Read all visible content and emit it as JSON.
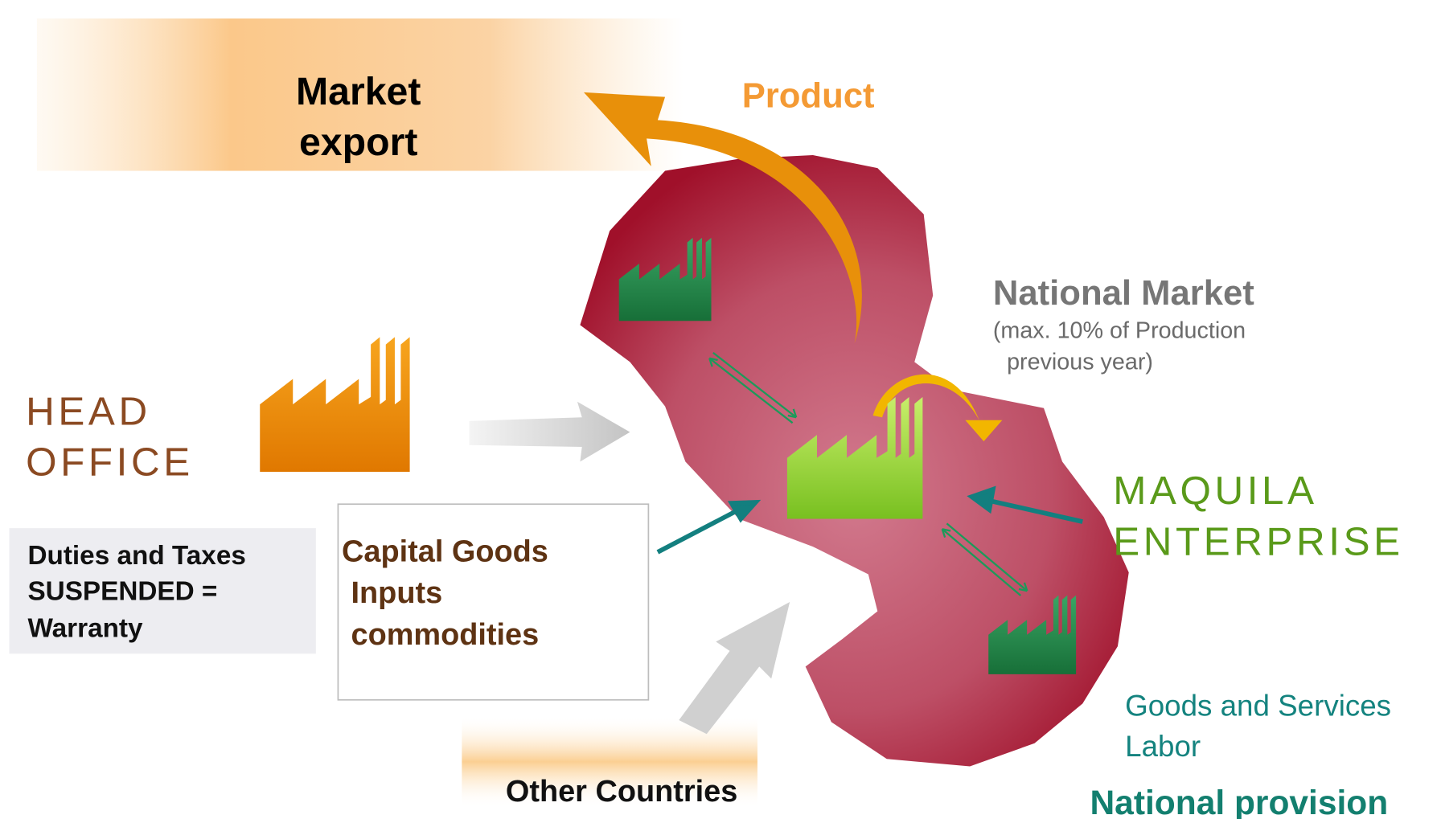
{
  "market_export": [
    "Market",
    "export"
  ],
  "product": "Product",
  "national_market": {
    "title": "National Market",
    "note": [
      "(max. 10% of Production",
      "previous year)"
    ]
  },
  "head_office": [
    "HEAD",
    "OFFICE"
  ],
  "maquila_enterprise": [
    "MAQUILA",
    "ENTERPRISE"
  ],
  "duties_box": [
    "Duties and Taxes",
    "SUSPENDED =",
    "Warranty"
  ],
  "capital_goods_box": [
    "Capital Goods",
    "Inputs",
    "commodities"
  ],
  "other_countries": "Other Countries",
  "national_provision": {
    "items": [
      "Goods and Services",
      "Labor"
    ],
    "title": "National provision"
  }
}
